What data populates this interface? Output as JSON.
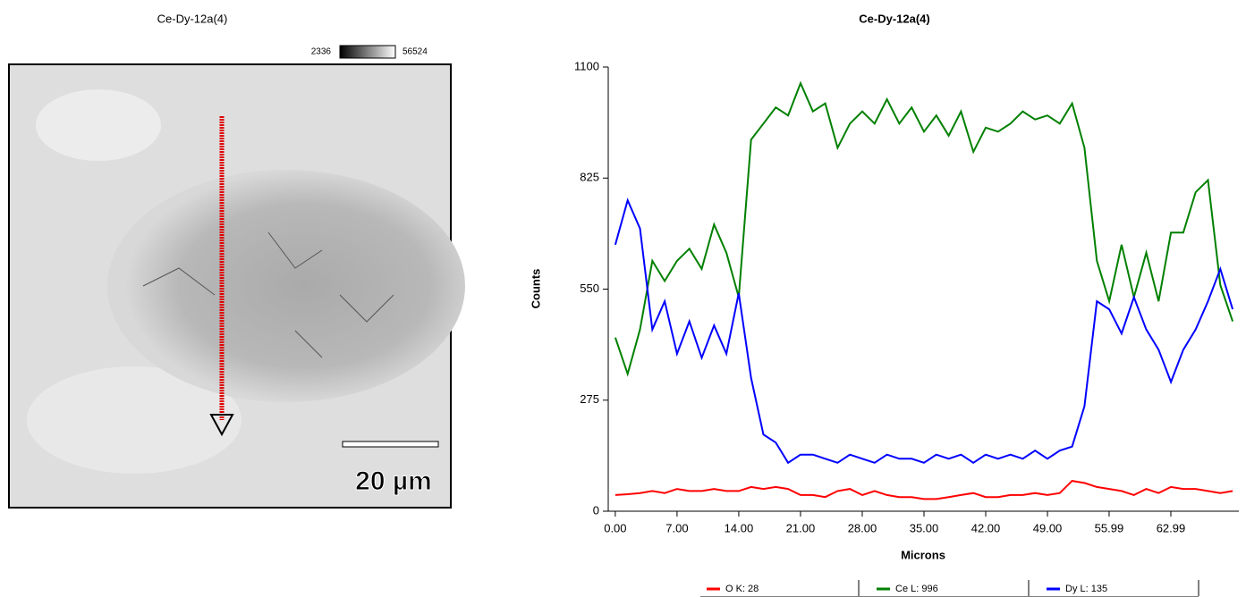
{
  "image_panel": {
    "title": "Ce-Dy-12a(4)",
    "scale_min": "2336",
    "scale_max": "56524",
    "scale_bar": "20 µm"
  },
  "chart_data": {
    "type": "line",
    "title": "Ce-Dy-12a(4)",
    "x_label": "Microns",
    "y_label": "Counts",
    "x": [
      0,
      1.4,
      2.8,
      4.2,
      5.6,
      7,
      8.4,
      9.8,
      11.2,
      12.6,
      14,
      15.4,
      16.8,
      18.2,
      19.6,
      21,
      22.4,
      23.8,
      25.2,
      26.6,
      28,
      29.4,
      30.8,
      32.2,
      33.6,
      35,
      36.4,
      37.8,
      39.2,
      40.6,
      42,
      43.4,
      44.8,
      46.2,
      47.6,
      49,
      50.4,
      51.8,
      53.2,
      54.6,
      56,
      57.4,
      58.8,
      60.2,
      61.6,
      63,
      64.4,
      65.8,
      67.2,
      68.6,
      70
    ],
    "series": [
      {
        "name": "O K: 28",
        "color": "#ff0000",
        "values": [
          40,
          42,
          45,
          50,
          45,
          55,
          50,
          50,
          55,
          50,
          50,
          60,
          55,
          60,
          55,
          40,
          40,
          35,
          50,
          55,
          40,
          50,
          40,
          35,
          35,
          30,
          30,
          35,
          40,
          45,
          35,
          35,
          40,
          40,
          45,
          40,
          45,
          75,
          70,
          60,
          55,
          50,
          40,
          55,
          45,
          60,
          55,
          55,
          50,
          45,
          50
        ]
      },
      {
        "name": "Ce L: 996",
        "color": "#008000",
        "values": [
          430,
          340,
          450,
          620,
          570,
          620,
          650,
          600,
          710,
          640,
          530,
          920,
          960,
          1000,
          980,
          1060,
          990,
          1010,
          900,
          960,
          990,
          960,
          1020,
          960,
          1000,
          940,
          980,
          930,
          990,
          890,
          950,
          940,
          960,
          990,
          970,
          980,
          960,
          1010,
          900,
          620,
          520,
          660,
          530,
          640,
          520,
          690,
          690,
          790,
          820,
          560,
          470
        ]
      },
      {
        "name": "Dy L: 135",
        "color": "#0000ff",
        "values": [
          660,
          770,
          700,
          450,
          520,
          390,
          470,
          380,
          460,
          390,
          540,
          330,
          190,
          170,
          120,
          140,
          140,
          130,
          120,
          140,
          130,
          120,
          140,
          130,
          130,
          120,
          140,
          130,
          140,
          120,
          140,
          130,
          140,
          130,
          150,
          130,
          150,
          160,
          260,
          520,
          500,
          440,
          530,
          450,
          400,
          320,
          400,
          450,
          520,
          600,
          500
        ]
      }
    ],
    "xlim": [
      -0.8,
      70.7
    ],
    "ylim": [
      0,
      1100
    ],
    "xticks": [
      {
        "value": 0,
        "label": "0.00"
      },
      {
        "value": 7,
        "label": "7.00"
      },
      {
        "value": 14,
        "label": "14.00"
      },
      {
        "value": 21,
        "label": "21.00"
      },
      {
        "value": 28,
        "label": "28.00"
      },
      {
        "value": 35,
        "label": "35.00"
      },
      {
        "value": 42,
        "label": "42.00"
      },
      {
        "value": 49,
        "label": "49.00"
      },
      {
        "value": 55.99,
        "label": "55.99"
      },
      {
        "value": 62.99,
        "label": "62.99"
      }
    ],
    "yticks": [
      0,
      275,
      550,
      825,
      1100
    ]
  }
}
